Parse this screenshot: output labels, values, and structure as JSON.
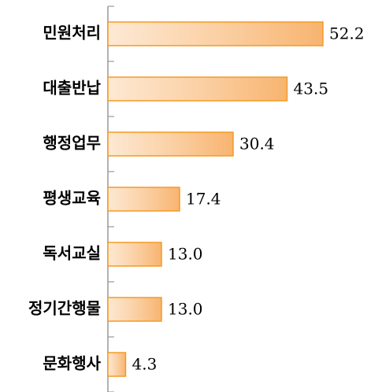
{
  "chart_data": {
    "type": "bar",
    "orientation": "horizontal",
    "categories": [
      "민원처리",
      "대출반납",
      "행정업무",
      "평생교육",
      "독서교실",
      "정기간행물",
      "문화행사"
    ],
    "values": [
      52.2,
      43.5,
      30.4,
      17.4,
      13.0,
      13.0,
      4.3
    ],
    "value_labels": [
      "52.2",
      "43.5",
      "30.4",
      "17.4",
      "13.0",
      "13.0",
      "4.3"
    ],
    "color": "#f59a23",
    "xlim": [
      0,
      65
    ]
  }
}
